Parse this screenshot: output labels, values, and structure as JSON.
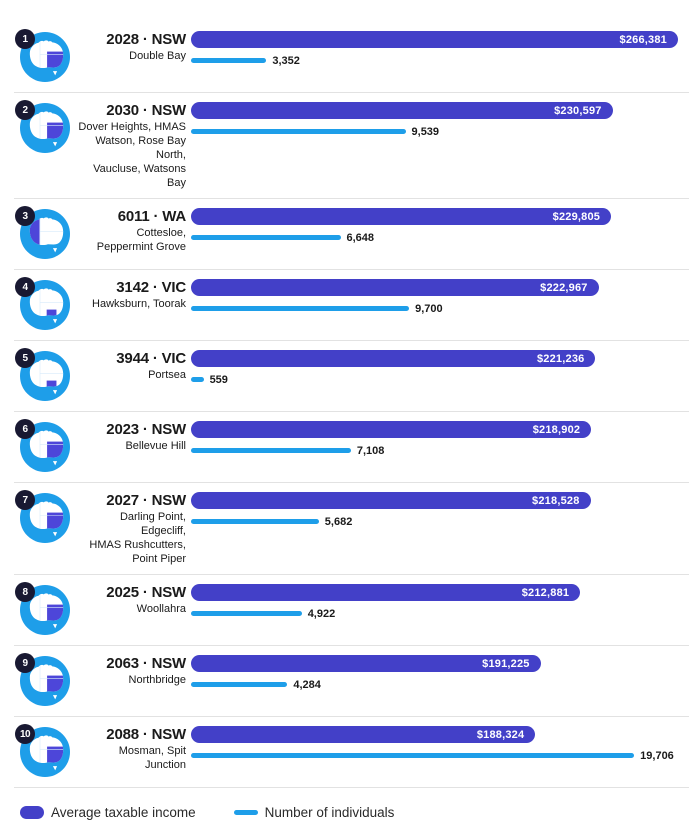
{
  "colors": {
    "income_bar": "#4340c8",
    "individuals_bar": "#1e9ee9",
    "icon_circle": "#1e9ee9",
    "state_highlight": "#4d46d9",
    "badge": "#191932",
    "separator": "#e2e2e2",
    "value_text": "#ffffff",
    "text": "#1a1a1a"
  },
  "legend": {
    "income_label": "Average taxable income",
    "individuals_label": "Number of individuals"
  },
  "rows": [
    {
      "rank": "1",
      "postcode": "2028 · NSW",
      "desc_lines": [
        "Double Bay"
      ],
      "state": "nsw",
      "income_label": "$266,381",
      "income_value": 266381,
      "individuals_label": "3,352",
      "individuals_value": 3352
    },
    {
      "rank": "2",
      "postcode": "2030 · NSW",
      "desc_lines": [
        "Dover Heights, HMAS",
        "Watson, Rose Bay North,",
        "Vaucluse, Watsons Bay"
      ],
      "state": "nsw",
      "income_label": "$230,597",
      "income_value": 230597,
      "individuals_label": "9,539",
      "individuals_value": 9539
    },
    {
      "rank": "3",
      "postcode": "6011 · WA",
      "desc_lines": [
        "Cottesloe,",
        "Peppermint Grove"
      ],
      "state": "wa",
      "income_label": "$229,805",
      "income_value": 229805,
      "individuals_label": "6,648",
      "individuals_value": 6648
    },
    {
      "rank": "4",
      "postcode": "3142 · VIC",
      "desc_lines": [
        "Hawksburn, Toorak"
      ],
      "state": "vic",
      "income_label": "$222,967",
      "income_value": 222967,
      "individuals_label": "9,700",
      "individuals_value": 9700
    },
    {
      "rank": "5",
      "postcode": "3944 · VIC",
      "desc_lines": [
        "Portsea"
      ],
      "state": "vic",
      "income_label": "$221,236",
      "income_value": 221236,
      "individuals_label": "559",
      "individuals_value": 559
    },
    {
      "rank": "6",
      "postcode": "2023 · NSW",
      "desc_lines": [
        "Bellevue Hill"
      ],
      "state": "nsw",
      "income_label": "$218,902",
      "income_value": 218902,
      "individuals_label": "7,108",
      "individuals_value": 7108
    },
    {
      "rank": "7",
      "postcode": "2027 · NSW",
      "desc_lines": [
        "Darling Point, Edgecliff,",
        "HMAS Rushcutters,",
        "Point Piper"
      ],
      "state": "nsw",
      "income_label": "$218,528",
      "income_value": 218528,
      "individuals_label": "5,682",
      "individuals_value": 5682
    },
    {
      "rank": "8",
      "postcode": "2025 · NSW",
      "desc_lines": [
        "Woollahra"
      ],
      "state": "nsw",
      "income_label": "$212,881",
      "income_value": 212881,
      "individuals_label": "4,922",
      "individuals_value": 4922
    },
    {
      "rank": "9",
      "postcode": "2063 · NSW",
      "desc_lines": [
        "Northbridge"
      ],
      "state": "nsw",
      "income_label": "$191,225",
      "income_value": 191225,
      "individuals_label": "4,284",
      "individuals_value": 4284
    },
    {
      "rank": "10",
      "postcode": "2088 · NSW",
      "desc_lines": [
        "Mosman, Spit Junction"
      ],
      "state": "nsw",
      "income_label": "$188,324",
      "income_value": 188324,
      "individuals_label": "19,706",
      "individuals_value": 19706
    }
  ],
  "chart_data": {
    "type": "bar",
    "orientation": "horizontal",
    "title": "",
    "categories": [
      "2028 · NSW",
      "2030 · NSW",
      "6011 · WA",
      "3142 · VIC",
      "3944 · VIC",
      "2023 · NSW",
      "2027 · NSW",
      "2025 · NSW",
      "2063 · NSW",
      "2088 · NSW"
    ],
    "category_descriptions": [
      "Double Bay",
      "Dover Heights, HMAS Watson, Rose Bay North, Vaucluse, Watsons Bay",
      "Cottesloe, Peppermint Grove",
      "Hawksburn, Toorak",
      "Portsea",
      "Bellevue Hill",
      "Darling Point, Edgecliff, HMAS Rushcutters, Point Piper",
      "Woollahra",
      "Northbridge",
      "Mosman, Spit Junction"
    ],
    "series": [
      {
        "name": "Average taxable income",
        "values": [
          266381,
          230597,
          229805,
          222967,
          221236,
          218902,
          218528,
          212881,
          191225,
          188324
        ]
      },
      {
        "name": "Number of individuals",
        "values": [
          3352,
          9539,
          6648,
          9700,
          559,
          7108,
          5682,
          4922,
          4284,
          19706
        ]
      }
    ],
    "value_labels": true,
    "grid": false,
    "legend_position": "bottom"
  }
}
